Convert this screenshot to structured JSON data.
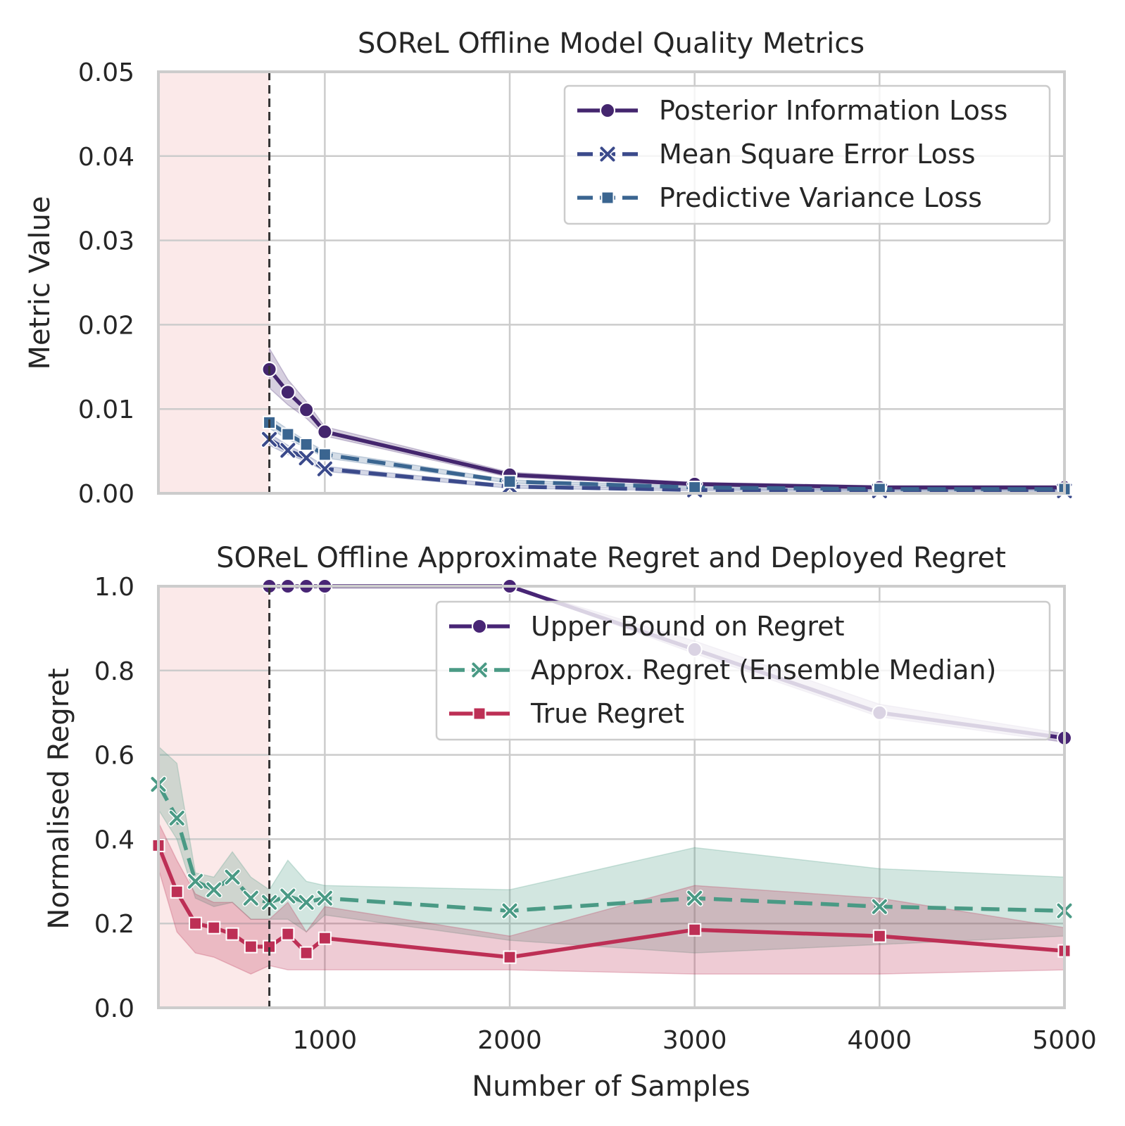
{
  "colors": {
    "posterior": "#44266e",
    "mse": "#3b4a8b",
    "variance": "#3a6590",
    "upper": "#482575",
    "approx": "#4a9a85",
    "true": "#bd2f55",
    "shade": "#f8d3d3",
    "vline": "#333333"
  },
  "chart_data": [
    {
      "type": "line",
      "title": "SOReL Offline Model Quality Metrics",
      "xlabel": "",
      "ylabel": "Metric Value",
      "xlim": [
        100,
        5000
      ],
      "ylim": [
        0,
        0.05
      ],
      "yticks": [
        "0.00",
        "0.01",
        "0.02",
        "0.03",
        "0.04",
        "0.05"
      ],
      "shaded_region_x": [
        100,
        700
      ],
      "vline_x": 700,
      "grid": true,
      "legend_position": "upper right",
      "series": [
        {
          "name": "Posterior Information Loss",
          "marker": "circle",
          "dash": "solid",
          "x": [
            700,
            800,
            900,
            1000,
            2000,
            3000,
            4000,
            5000
          ],
          "y": [
            0.0147,
            0.012,
            0.0099,
            0.0073,
            0.0022,
            0.0011,
            0.0007,
            0.0007
          ],
          "band_low": [
            0.0125,
            0.0105,
            0.0089,
            0.0068,
            0.0019,
            0.0009,
            0.0006,
            0.0006
          ],
          "band_high": [
            0.0172,
            0.0135,
            0.0109,
            0.0079,
            0.0025,
            0.0013,
            0.0009,
            0.0009
          ]
        },
        {
          "name": "Mean Square Error Loss",
          "marker": "x",
          "dash": "dashed",
          "x": [
            700,
            800,
            900,
            1000,
            2000,
            3000,
            4000,
            5000
          ],
          "y": [
            0.0064,
            0.0051,
            0.0042,
            0.0029,
            0.0008,
            0.0004,
            0.0003,
            0.0003
          ],
          "band_low": [
            0.0057,
            0.0046,
            0.0038,
            0.0026,
            0.0006,
            0.0003,
            0.0002,
            0.0002
          ],
          "band_high": [
            0.0071,
            0.0057,
            0.0046,
            0.0032,
            0.001,
            0.0005,
            0.0004,
            0.0004
          ]
        },
        {
          "name": "Predictive Variance Loss",
          "marker": "square",
          "dash": "dashed",
          "x": [
            700,
            800,
            900,
            1000,
            2000,
            3000,
            4000,
            5000
          ],
          "y": [
            0.0084,
            0.007,
            0.0058,
            0.0046,
            0.0014,
            0.0007,
            0.0005,
            0.0005
          ],
          "band_low": [
            0.0077,
            0.0064,
            0.0054,
            0.0042,
            0.0012,
            0.0006,
            0.0004,
            0.0004
          ],
          "band_high": [
            0.0091,
            0.0076,
            0.0062,
            0.005,
            0.0016,
            0.0008,
            0.0006,
            0.0006
          ]
        }
      ]
    },
    {
      "type": "line",
      "title": "SOReL Offline Approximate Regret and Deployed Regret",
      "xlabel": "Number of Samples",
      "ylabel": "Normalised Regret",
      "xlim": [
        100,
        5000
      ],
      "ylim": [
        0,
        1.0
      ],
      "xticks": [
        "1000",
        "2000",
        "3000",
        "4000",
        "5000"
      ],
      "yticks": [
        "0.0",
        "0.2",
        "0.4",
        "0.6",
        "0.8",
        "1.0"
      ],
      "shaded_region_x": [
        100,
        700
      ],
      "vline_x": 700,
      "grid": true,
      "legend_position": "upper right",
      "series": [
        {
          "name": "Upper Bound on Regret",
          "marker": "circle",
          "dash": "solid",
          "x": [
            700,
            800,
            900,
            1000,
            2000,
            3000,
            4000,
            5000
          ],
          "y": [
            1.0,
            1.0,
            1.0,
            1.0,
            1.0,
            0.85,
            0.7,
            0.64
          ],
          "band_low": [
            1.0,
            1.0,
            1.0,
            1.0,
            1.0,
            0.84,
            0.69,
            0.63
          ],
          "band_high": [
            1.0,
            1.0,
            1.0,
            1.0,
            1.0,
            0.87,
            0.72,
            0.65
          ]
        },
        {
          "name": "Approx. Regret (Ensemble Median)",
          "marker": "x",
          "dash": "dashed",
          "x": [
            100,
            200,
            300,
            400,
            500,
            600,
            700,
            800,
            900,
            1000,
            2000,
            3000,
            4000,
            5000
          ],
          "y": [
            0.53,
            0.45,
            0.3,
            0.28,
            0.31,
            0.26,
            0.25,
            0.265,
            0.25,
            0.26,
            0.23,
            0.26,
            0.24,
            0.23
          ],
          "band_low": [
            0.47,
            0.4,
            0.26,
            0.24,
            0.25,
            0.21,
            0.21,
            0.21,
            0.18,
            0.22,
            0.16,
            0.13,
            0.15,
            0.17
          ],
          "band_high": [
            0.62,
            0.58,
            0.32,
            0.31,
            0.37,
            0.31,
            0.28,
            0.35,
            0.3,
            0.29,
            0.28,
            0.38,
            0.33,
            0.31
          ]
        },
        {
          "name": "True Regret",
          "marker": "square",
          "dash": "solid",
          "x": [
            100,
            200,
            300,
            400,
            500,
            600,
            700,
            800,
            900,
            1000,
            2000,
            3000,
            4000,
            5000
          ],
          "y": [
            0.385,
            0.275,
            0.2,
            0.19,
            0.175,
            0.145,
            0.145,
            0.175,
            0.13,
            0.165,
            0.12,
            0.185,
            0.17,
            0.135
          ],
          "band_low": [
            0.33,
            0.18,
            0.13,
            0.12,
            0.1,
            0.08,
            0.1,
            0.09,
            0.09,
            0.09,
            0.09,
            0.08,
            0.08,
            0.09
          ],
          "band_high": [
            0.44,
            0.35,
            0.27,
            0.25,
            0.25,
            0.21,
            0.21,
            0.25,
            0.18,
            0.24,
            0.17,
            0.29,
            0.26,
            0.19
          ]
        }
      ]
    }
  ]
}
